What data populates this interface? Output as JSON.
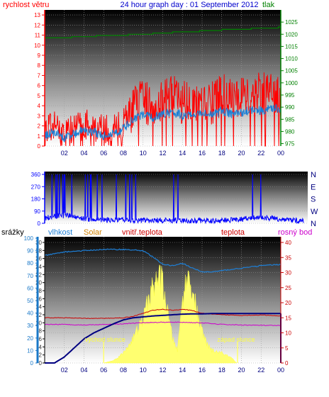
{
  "colors": {
    "wind": "#ff0000",
    "gust": "#1a7fd6",
    "pressure": "#008000",
    "winddir": "#0000ff",
    "rain": "#1a78c8",
    "humidity": "#1e7fd6",
    "solar": "#ffff70",
    "indoor": "#000080",
    "temp": "#cc0000",
    "dew": "#cc00cc",
    "label_gray": "#333333"
  },
  "chart_data": [
    {
      "type": "line",
      "title": "24 hour graph day : 01 September 2012",
      "left_axis_label": "rychlost větru",
      "right_axis_label": "tlak",
      "x_ticks": [
        "02",
        "04",
        "06",
        "08",
        "10",
        "12",
        "14",
        "16",
        "18",
        "20",
        "22",
        "00"
      ],
      "y_left_ticks": [
        "0",
        "1",
        "2",
        "3",
        "4",
        "5",
        "6",
        "7",
        "8",
        "9",
        "10",
        "11",
        "12",
        "13"
      ],
      "y_left_range": [
        0,
        13.5
      ],
      "y_right_ticks": [
        "975",
        "980",
        "985",
        "990",
        "995",
        "1000",
        "1005",
        "1010",
        "1015",
        "1020",
        "1025"
      ],
      "y_right_range": [
        974,
        1030
      ],
      "series": [
        {
          "key": "wind",
          "hours": [
            0,
            1,
            2,
            3,
            4,
            5,
            6,
            7,
            8,
            9,
            10,
            11,
            12,
            13,
            14,
            15,
            16,
            17,
            18,
            19,
            20,
            21,
            22,
            23,
            24
          ],
          "values": [
            1.5,
            2.0,
            1.2,
            1.8,
            2.2,
            2.0,
            1.5,
            1.6,
            2.2,
            3.8,
            4.5,
            4.0,
            4.8,
            5.0,
            4.3,
            4.4,
            4.8,
            4.2,
            5.2,
            4.6,
            4.9,
            5.3,
            5.1,
            5.6,
            4.5
          ]
        },
        {
          "key": "gust",
          "hours": [
            0,
            1,
            2,
            3,
            4,
            5,
            6,
            7,
            8,
            9,
            10,
            11,
            12,
            13,
            14,
            15,
            16,
            17,
            18,
            19,
            20,
            21,
            22,
            23,
            24
          ],
          "values": [
            1.0,
            1.4,
            0.8,
            1.2,
            1.6,
            1.4,
            1.0,
            1.2,
            1.7,
            2.6,
            3.1,
            2.8,
            3.2,
            3.4,
            3.0,
            3.1,
            3.3,
            3.0,
            3.5,
            3.2,
            3.3,
            3.6,
            3.5,
            3.8,
            3.6
          ]
        },
        {
          "key": "pressure",
          "hours": [
            0,
            2,
            4,
            6,
            8,
            10,
            12,
            14,
            16,
            18,
            20,
            22,
            24
          ],
          "values": [
            1018.5,
            1018.6,
            1019.0,
            1019.4,
            1019.7,
            1020.0,
            1020.5,
            1021.0,
            1021.3,
            1021.8,
            1022.0,
            1022.5,
            1022.8
          ]
        }
      ]
    },
    {
      "type": "line",
      "left_axis_label": "",
      "y_left_ticks": [
        "0",
        "90",
        "180",
        "270",
        "360"
      ],
      "y_left_range": [
        0,
        360
      ],
      "direction_labels": [
        "N",
        "W",
        "S",
        "E",
        "N"
      ],
      "series": [
        {
          "key": "winddir",
          "hours": [
            0,
            2,
            4,
            6,
            8,
            10,
            12,
            14,
            16,
            18,
            20,
            22,
            24
          ],
          "values": [
            40,
            60,
            30,
            25,
            20,
            22,
            20,
            18,
            20,
            28,
            45,
            30,
            15
          ]
        }
      ]
    },
    {
      "type": "line",
      "labels": {
        "rain": "srážky",
        "humidity": "vlhkost",
        "solar": "Solar",
        "indoor": "vnitř.teplota",
        "temp": "teplota",
        "dew": "rosný bod"
      },
      "annotations": {
        "sunrise": "východ slunce",
        "sunset": "západ slunce"
      },
      "x_ticks": [
        "02",
        "04",
        "06",
        "08",
        "10",
        "12",
        "14",
        "16",
        "18",
        "20",
        "22",
        "00"
      ],
      "y_rain_ticks": [
        "0",
        "10",
        "20",
        "30",
        "40",
        "50",
        "60",
        "70",
        "80",
        "90",
        "100"
      ],
      "y_humidity_ticks": [
        "0",
        "2",
        "4",
        "6",
        "8",
        "10",
        "12",
        "14",
        "16",
        "18",
        "20",
        "22",
        "24",
        "26",
        "28",
        "30"
      ],
      "y_right_ticks": [
        "0",
        "5",
        "10",
        "15",
        "20",
        "25",
        "30",
        "35",
        "40"
      ],
      "y_right_range": [
        0,
        40
      ],
      "series": [
        {
          "key": "humidity",
          "hours": [
            0,
            2,
            4,
            6,
            8,
            10,
            11,
            12,
            13,
            14,
            15,
            16,
            17,
            18,
            20,
            22,
            24
          ],
          "values": [
            86,
            89,
            90,
            91,
            91,
            90,
            85,
            79,
            78,
            80,
            76,
            73,
            73,
            74,
            76,
            78,
            79
          ]
        },
        {
          "key": "solar",
          "hours": [
            6,
            7,
            8,
            9,
            10,
            10.5,
            11,
            11.5,
            12,
            12.5,
            13,
            13.5,
            14,
            14.5,
            15,
            15.5,
            16,
            16.5,
            17,
            18,
            19,
            19.5
          ],
          "values": [
            0,
            2,
            8,
            20,
            35,
            50,
            60,
            70,
            65,
            40,
            20,
            10,
            50,
            70,
            60,
            40,
            25,
            15,
            10,
            8,
            4,
            0
          ]
        },
        {
          "key": "indoor",
          "hours": [
            0,
            1,
            2,
            3,
            4,
            5,
            6,
            7,
            8,
            9,
            10,
            11,
            12,
            13,
            14,
            15,
            16,
            17,
            18,
            19,
            20,
            21,
            22,
            23,
            24
          ],
          "values": [
            0,
            0,
            2,
            5,
            8,
            10,
            11.5,
            13,
            14.3,
            15,
            15.3,
            15.6,
            15.8,
            16,
            16.2,
            16.3,
            16.3,
            16.4,
            16.4,
            16.4,
            16.4,
            16.4,
            16.4,
            16.4,
            16.4
          ]
        },
        {
          "key": "temp",
          "hours": [
            0,
            2,
            4,
            6,
            8,
            9,
            10,
            11,
            12,
            13,
            14,
            15,
            16,
            17,
            18,
            20,
            22,
            24
          ],
          "values": [
            15.0,
            15.0,
            14.8,
            14.8,
            15.0,
            15.5,
            16.5,
            17.5,
            17.8,
            17.5,
            17.8,
            17.4,
            16.5,
            16.2,
            16.0,
            15.8,
            15.9,
            15.6
          ]
        },
        {
          "key": "dew",
          "hours": [
            0,
            2,
            4,
            6,
            8,
            10,
            12,
            14,
            16,
            18,
            20,
            22,
            24
          ],
          "values": [
            12.8,
            12.8,
            12.6,
            12.8,
            13.0,
            13.4,
            13.5,
            13.5,
            13.3,
            12.8,
            12.6,
            12.5,
            12.4
          ]
        }
      ]
    }
  ]
}
